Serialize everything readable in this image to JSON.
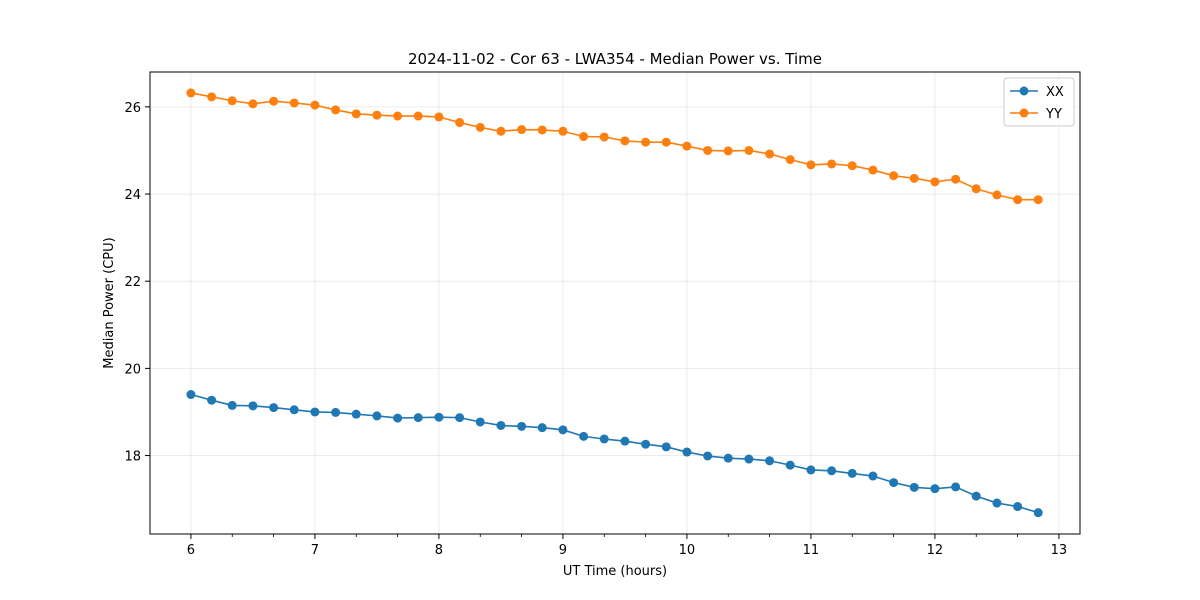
{
  "chart_data": {
    "type": "line",
    "title": "2024-11-02 - Cor 63 - LWA354 - Median Power vs. Time",
    "xlabel": "UT Time (hours)",
    "ylabel": "Median Power (CPU)",
    "xlim": [
      5.67,
      13.17
    ],
    "ylim": [
      16.2,
      26.8
    ],
    "xticks": [
      6,
      7,
      8,
      9,
      10,
      11,
      12,
      13
    ],
    "yticks": [
      18,
      20,
      22,
      24,
      26
    ],
    "grid": true,
    "legend_position": "top-right",
    "x": [
      6.0,
      6.167,
      6.333,
      6.5,
      6.667,
      6.833,
      7.0,
      7.167,
      7.333,
      7.5,
      7.667,
      7.833,
      8.0,
      8.167,
      8.333,
      8.5,
      8.667,
      8.833,
      9.0,
      9.167,
      9.333,
      9.5,
      9.667,
      9.833,
      10.0,
      10.167,
      10.333,
      10.5,
      10.667,
      10.833,
      11.0,
      11.167,
      11.333,
      11.5,
      11.667,
      11.833,
      12.0,
      12.167,
      12.333,
      12.5,
      12.667,
      12.833
    ],
    "series": [
      {
        "name": "XX",
        "color": "#1f77b4",
        "values": [
          19.4,
          19.27,
          19.15,
          19.14,
          19.1,
          19.05,
          19.0,
          18.99,
          18.95,
          18.91,
          18.86,
          18.87,
          18.88,
          18.87,
          18.77,
          18.69,
          18.67,
          18.64,
          18.59,
          18.44,
          18.38,
          18.33,
          18.26,
          18.2,
          18.08,
          17.99,
          17.94,
          17.92,
          17.88,
          17.78,
          17.67,
          17.65,
          17.59,
          17.53,
          17.38,
          17.27,
          17.24,
          17.28,
          17.07,
          16.91,
          16.83,
          16.69
        ]
      },
      {
        "name": "YY",
        "color": "#ff7f0e",
        "values": [
          26.32,
          26.23,
          26.14,
          26.07,
          26.13,
          26.09,
          26.04,
          25.93,
          25.84,
          25.81,
          25.79,
          25.79,
          25.77,
          25.64,
          25.53,
          25.44,
          25.48,
          25.47,
          25.44,
          25.32,
          25.31,
          25.22,
          25.19,
          25.19,
          25.1,
          25.0,
          24.99,
          25.0,
          24.92,
          24.79,
          24.67,
          24.69,
          24.65,
          24.55,
          24.42,
          24.36,
          24.28,
          24.34,
          24.12,
          23.98,
          23.87,
          23.87
        ]
      }
    ]
  }
}
